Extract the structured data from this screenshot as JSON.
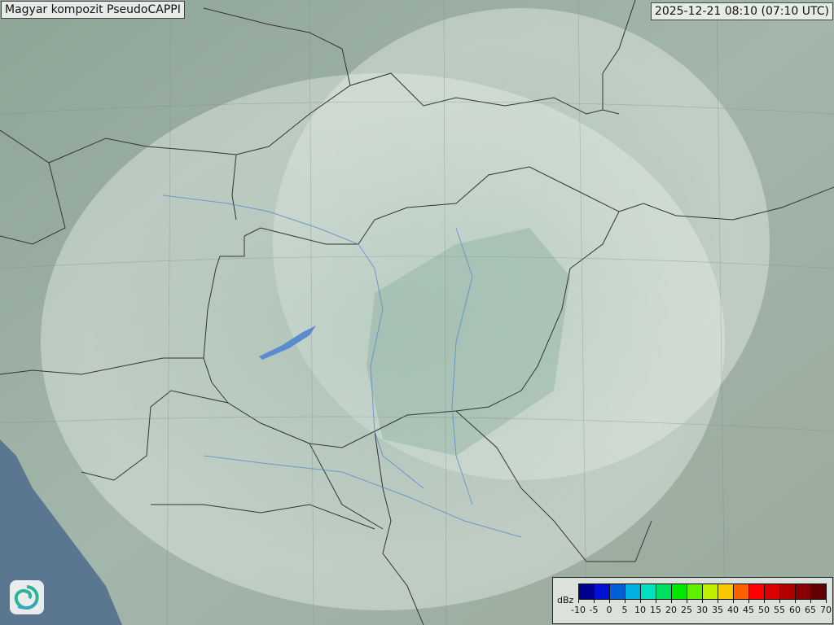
{
  "title": "Magyar kompozit  PseudoCAPPI",
  "timestamp": "2025-12-21 08:10 (07:10 UTC)",
  "legend": {
    "unit": "dBz",
    "ticks": [
      "-10",
      "-5",
      "0",
      "5",
      "10",
      "15",
      "20",
      "25",
      "30",
      "35",
      "40",
      "45",
      "50",
      "55",
      "60",
      "65",
      "70"
    ],
    "colors": [
      "#000090",
      "#0010d0",
      "#0060d8",
      "#00b0e0",
      "#00e0c0",
      "#00e060",
      "#00e800",
      "#60f000",
      "#c0f000",
      "#f8c800",
      "#ff6000",
      "#ff0000",
      "#d80000",
      "#b00000",
      "#880000",
      "#600000"
    ]
  },
  "map": {
    "terrain_color": "#9fb3a6",
    "coverage_color": "#dce6e0",
    "sea_color": "#5a7690",
    "border_color": "#333333",
    "river_color": "#5a8ad0"
  },
  "logo": {
    "icon": "swirl-logo-icon"
  }
}
